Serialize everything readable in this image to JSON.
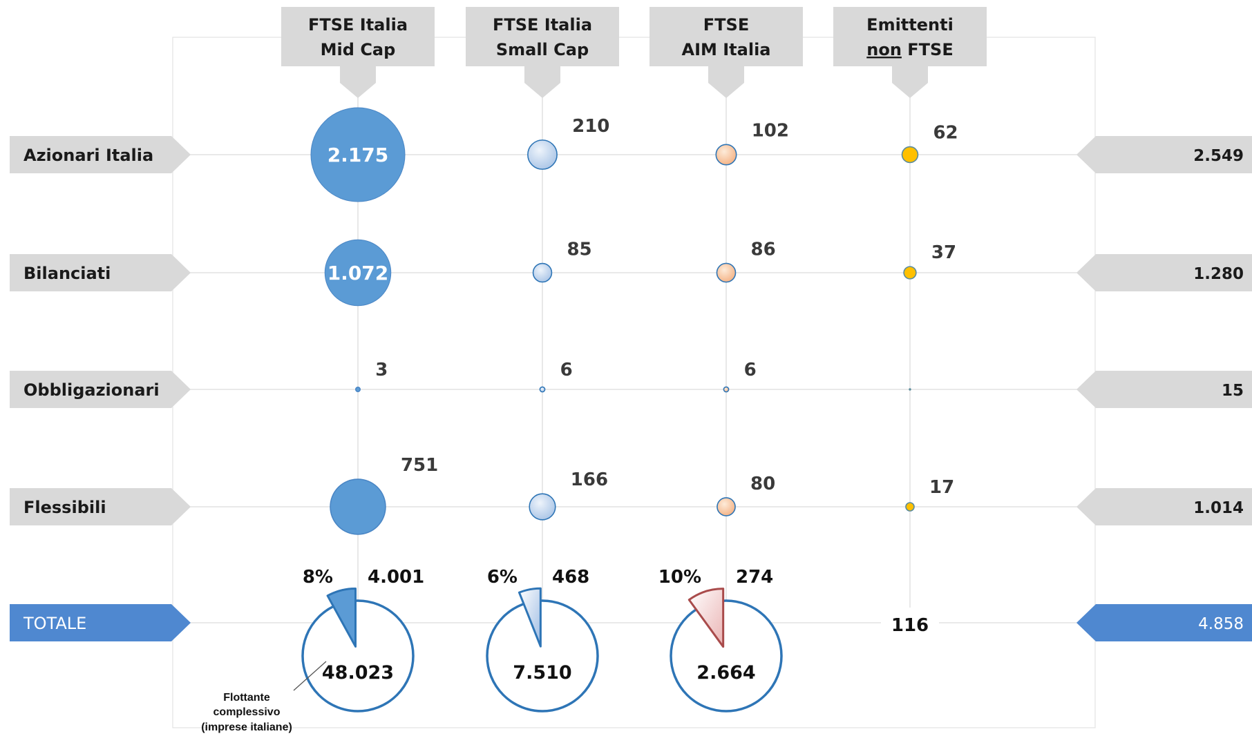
{
  "chart_data": {
    "type": "bubble-matrix",
    "columns": [
      {
        "label_line1": "FTSE Italia",
        "label_line2": "Mid Cap",
        "underline_first_word_line2": false
      },
      {
        "label_line1": "FTSE Italia",
        "label_line2": "Small Cap",
        "underline_first_word_line2": false
      },
      {
        "label_line1": "FTSE",
        "label_line2": "AIM Italia",
        "underline_first_word_line2": false
      },
      {
        "label_line1": "Emittenti",
        "label_line2_part1": "non",
        "label_line2_part2": " FTSE",
        "underline_first_word_line2": true
      }
    ],
    "rows": [
      {
        "label": "Azionari Italia",
        "values": [
          2175,
          210,
          102,
          62
        ],
        "value_labels": [
          "2.175",
          "210",
          "102",
          "62"
        ],
        "row_total": "2.549"
      },
      {
        "label": "Bilanciati",
        "values": [
          1072,
          85,
          86,
          37
        ],
        "value_labels": [
          "1.072",
          "85",
          "86",
          "37"
        ],
        "row_total": "1.280"
      },
      {
        "label": "Obbligazionari",
        "values": [
          3,
          6,
          6,
          0
        ],
        "value_labels": [
          "3",
          "6",
          "6",
          ""
        ],
        "row_total": "15"
      },
      {
        "label": "Flessibili",
        "values": [
          751,
          166,
          80,
          17
        ],
        "value_labels": [
          "751",
          "166",
          "80",
          "17"
        ],
        "row_total": "1.014"
      }
    ],
    "totals_row": {
      "label": "TOTALE",
      "grand_total": "4.858",
      "column_totals": [
        "4.001",
        "468",
        "274",
        "116"
      ],
      "pies": [
        {
          "share_pct": 8,
          "share_label": "8%",
          "base_label": "48.023"
        },
        {
          "share_pct": 6,
          "share_label": "6%",
          "base_label": "7.510"
        },
        {
          "share_pct": 10,
          "share_label": "10%",
          "base_label": "2.664"
        }
      ]
    },
    "annotation": {
      "line1": "Flottante",
      "line2": "complessivo",
      "line3": "(imprese italiane)"
    },
    "colors": {
      "mid_cap": "#5b9bd5",
      "small_cap_light": "#dde8f5",
      "small_cap_dark": "#a9c4e6",
      "aim_light": "#fde3cc",
      "aim_dark": "#f4b183",
      "non_ftse": "#ffc000",
      "totals_blue": "#4f88d0",
      "pie_outline": "#2e75b6",
      "label_grey": "#d9d9d9"
    }
  }
}
